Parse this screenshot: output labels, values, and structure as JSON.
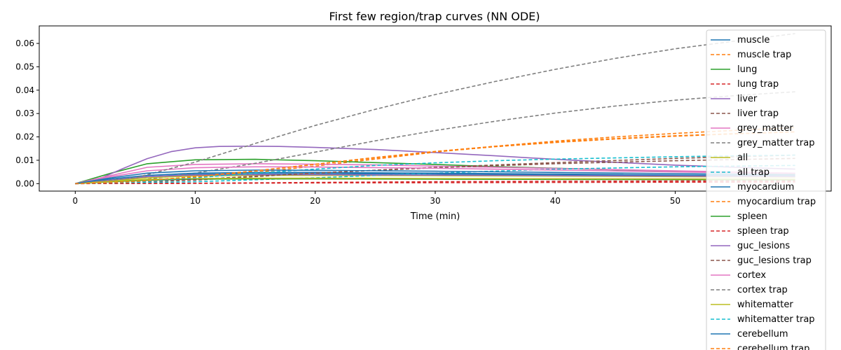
{
  "chart_data": {
    "type": "line",
    "title": "First few region/trap curves (NN ODE)",
    "xlabel": "Time (min)",
    "ylabel": "",
    "xlim": [
      -3,
      63
    ],
    "ylim": [
      -0.0032,
      0.0675
    ],
    "xticks": [
      0,
      10,
      20,
      30,
      40,
      50
    ],
    "yticks": [
      0.0,
      0.01,
      0.02,
      0.03,
      0.04,
      0.05,
      0.06
    ],
    "grid": false,
    "legend_position": "right, overflowing below plot",
    "series": [
      {
        "name": "muscle",
        "color": "#1f77b4",
        "style": "solid",
        "x": [
          0,
          3,
          6,
          10,
          15,
          20,
          25,
          30,
          40,
          50,
          60
        ],
        "y": [
          0,
          0.0015,
          0.003,
          0.004,
          0.0043,
          0.0043,
          0.0042,
          0.0041,
          0.0037,
          0.0033,
          0.003
        ]
      },
      {
        "name": "muscle trap",
        "color": "#ff7f0e",
        "style": "dashed",
        "x": [
          0,
          5,
          10,
          15,
          20,
          25,
          30,
          35,
          40,
          45,
          50,
          55,
          60
        ],
        "y": [
          0,
          0.0008,
          0.0025,
          0.0048,
          0.0075,
          0.0105,
          0.0135,
          0.016,
          0.0182,
          0.02,
          0.0215,
          0.0228,
          0.024
        ]
      },
      {
        "name": "lung",
        "color": "#2ca02c",
        "style": "solid",
        "x": [
          0,
          3,
          6,
          10,
          15,
          20,
          25,
          30,
          35,
          40,
          50,
          60
        ],
        "y": [
          0,
          0.0045,
          0.0085,
          0.0102,
          0.0104,
          0.0098,
          0.009,
          0.0082,
          0.0073,
          0.0066,
          0.0052,
          0.0042
        ]
      },
      {
        "name": "lung trap",
        "color": "#d62728",
        "style": "dashed",
        "x": [
          0,
          10,
          20,
          30,
          40,
          50,
          60
        ],
        "y": [
          0,
          0.0002,
          0.0005,
          0.0008,
          0.001,
          0.0011,
          0.0012
        ]
      },
      {
        "name": "liver",
        "color": "#9467bd",
        "style": "solid",
        "x": [
          0,
          2,
          4,
          6,
          8,
          10,
          12,
          14,
          17,
          20,
          25,
          30,
          35,
          40,
          45,
          50,
          55,
          60
        ],
        "y": [
          0,
          0.002,
          0.0065,
          0.0107,
          0.0137,
          0.0153,
          0.0159,
          0.016,
          0.0159,
          0.0155,
          0.0146,
          0.0133,
          0.0119,
          0.0104,
          0.0091,
          0.0079,
          0.007,
          0.0062
        ]
      },
      {
        "name": "liver trap",
        "color": "#8c564b",
        "style": "dashed",
        "x": [
          0,
          10,
          20,
          30,
          40,
          50,
          60
        ],
        "y": [
          0,
          0.0015,
          0.0045,
          0.007,
          0.009,
          0.0108,
          0.0122
        ]
      },
      {
        "name": "grey_matter",
        "color": "#e377c2",
        "style": "solid",
        "x": [
          0,
          3,
          6,
          10,
          15,
          20,
          25,
          30,
          40,
          50,
          60
        ],
        "y": [
          0,
          0.0035,
          0.007,
          0.0082,
          0.0085,
          0.0083,
          0.008,
          0.0075,
          0.0065,
          0.0055,
          0.0045
        ]
      },
      {
        "name": "grey_matter trap",
        "color": "#7f7f7f",
        "style": "dashed",
        "x": [
          0,
          5,
          10,
          15,
          20,
          25,
          30,
          35,
          40,
          45,
          50,
          55,
          60
        ],
        "y": [
          0,
          0.0012,
          0.0045,
          0.0087,
          0.0135,
          0.0183,
          0.0227,
          0.0267,
          0.0302,
          0.0332,
          0.0357,
          0.0377,
          0.0393
        ]
      },
      {
        "name": "all",
        "color": "#bcbd22",
        "style": "solid",
        "x": [
          0,
          3,
          6,
          10,
          15,
          20,
          30,
          40,
          50,
          60
        ],
        "y": [
          0,
          0.0012,
          0.0025,
          0.0033,
          0.0035,
          0.0035,
          0.0034,
          0.0032,
          0.003,
          0.0028
        ]
      },
      {
        "name": "all trap",
        "color": "#17becf",
        "style": "dashed",
        "x": [
          0,
          10,
          20,
          30,
          40,
          50,
          60
        ],
        "y": [
          0,
          0.0008,
          0.0025,
          0.0045,
          0.0062,
          0.0072,
          0.0078
        ]
      },
      {
        "name": "myocardium",
        "color": "#1f77b4",
        "style": "solid",
        "x": [
          0,
          3,
          6,
          10,
          15,
          20,
          30,
          40,
          50,
          60
        ],
        "y": [
          0,
          0.002,
          0.0035,
          0.0045,
          0.0048,
          0.0048,
          0.0045,
          0.0041,
          0.0037,
          0.0034
        ]
      },
      {
        "name": "myocardium trap",
        "color": "#ff7f0e",
        "style": "dashed",
        "x": [
          0,
          5,
          10,
          15,
          20,
          25,
          30,
          35,
          40,
          45,
          50,
          55,
          60
        ],
        "y": [
          0,
          0.0009,
          0.003,
          0.0055,
          0.0083,
          0.0112,
          0.0138,
          0.016,
          0.0178,
          0.0193,
          0.0205,
          0.0214,
          0.0222
        ]
      },
      {
        "name": "spleen",
        "color": "#2ca02c",
        "style": "solid",
        "x": [
          0,
          3,
          6,
          10,
          15,
          20,
          30,
          40,
          50,
          60
        ],
        "y": [
          0,
          0.0008,
          0.0015,
          0.0019,
          0.002,
          0.002,
          0.0019,
          0.0018,
          0.0017,
          0.0016
        ]
      },
      {
        "name": "spleen trap",
        "color": "#d62728",
        "style": "dashed",
        "x": [
          0,
          10,
          20,
          30,
          40,
          50,
          60
        ],
        "y": [
          0,
          0.0001,
          0.0003,
          0.0004,
          0.0005,
          0.0006,
          0.0007
        ]
      },
      {
        "name": "guc_lesions",
        "color": "#9467bd",
        "style": "solid",
        "x": [
          0,
          3,
          6,
          10,
          15,
          20,
          30,
          40,
          50,
          60
        ],
        "y": [
          0,
          0.0015,
          0.003,
          0.0037,
          0.0038,
          0.0038,
          0.0036,
          0.0034,
          0.0032,
          0.003
        ]
      },
      {
        "name": "guc_lesions trap",
        "color": "#8c564b",
        "style": "dashed",
        "x": [
          0,
          10,
          20,
          30,
          40,
          50,
          60
        ],
        "y": [
          0,
          0.0018,
          0.0045,
          0.0068,
          0.0085,
          0.0098,
          0.0108
        ]
      },
      {
        "name": "cortex",
        "color": "#e377c2",
        "style": "solid",
        "x": [
          0,
          3,
          6,
          10,
          15,
          20,
          30,
          40,
          50,
          60
        ],
        "y": [
          0,
          0.003,
          0.0055,
          0.0068,
          0.0072,
          0.0071,
          0.0066,
          0.0058,
          0.005,
          0.0043
        ]
      },
      {
        "name": "cortex trap",
        "color": "#7f7f7f",
        "style": "dashed",
        "x": [
          0,
          5,
          10,
          15,
          20,
          25,
          30,
          35,
          40,
          45,
          50,
          55,
          60
        ],
        "y": [
          0,
          0.0025,
          0.0092,
          0.0172,
          0.0249,
          0.0318,
          0.0381,
          0.0437,
          0.0489,
          0.0536,
          0.0577,
          0.061,
          0.0642
        ]
      },
      {
        "name": "whitematter",
        "color": "#bcbd22",
        "style": "solid",
        "x": [
          0,
          3,
          6,
          10,
          15,
          20,
          30,
          40,
          50,
          60
        ],
        "y": [
          0,
          0.001,
          0.0018,
          0.0022,
          0.0023,
          0.0023,
          0.0022,
          0.0021,
          0.002,
          0.0019
        ]
      },
      {
        "name": "whitematter trap",
        "color": "#17becf",
        "style": "dashed",
        "x": [
          0,
          5,
          10,
          15,
          20,
          25,
          30,
          35,
          40,
          45,
          50,
          55,
          60
        ],
        "y": [
          0,
          0.0007,
          0.0025,
          0.0045,
          0.0062,
          0.0078,
          0.0089,
          0.0098,
          0.0105,
          0.011,
          0.0115,
          0.0119,
          0.0122
        ]
      },
      {
        "name": "cerebellum",
        "color": "#1f77b4",
        "style": "solid",
        "x": [
          0,
          3,
          6,
          10,
          15,
          20,
          30,
          40,
          50,
          60
        ],
        "y": [
          0,
          0.0025,
          0.0045,
          0.0055,
          0.0058,
          0.0057,
          0.0053,
          0.0048,
          0.0043,
          0.0038
        ]
      },
      {
        "name": "cerebellum trap",
        "color": "#ff7f0e",
        "style": "dashed",
        "x": [
          0,
          5,
          10,
          15,
          20,
          25,
          30,
          35,
          40,
          45,
          50,
          55,
          60
        ],
        "y": [
          0,
          0.0009,
          0.0029,
          0.0054,
          0.0082,
          0.011,
          0.0136,
          0.0158,
          0.0176,
          0.0191,
          0.0203,
          0.0213,
          0.0221
        ]
      }
    ]
  }
}
